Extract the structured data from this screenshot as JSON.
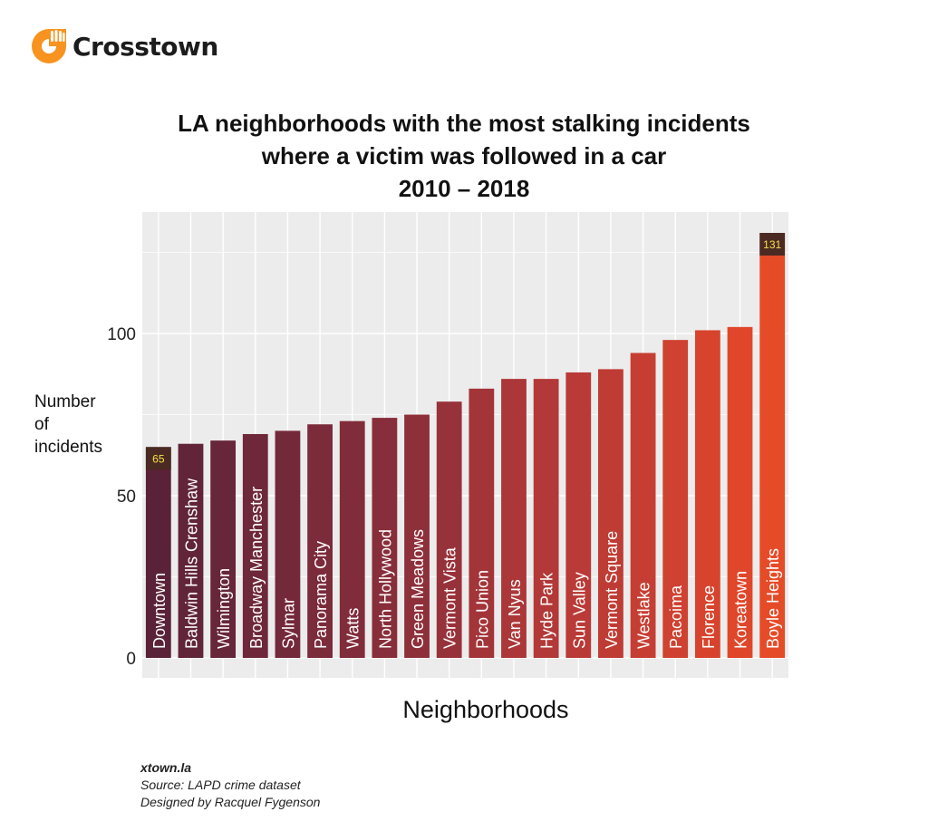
{
  "brand": {
    "name": "Crosstown",
    "logo_icon": "crosstown-hand-logo",
    "accent": "#f7931e"
  },
  "footer": {
    "site": "xtown.la",
    "source": "Source: LAPD crime dataset",
    "credit": "Designed by Racquel Fygenson"
  },
  "chart_data": {
    "type": "bar",
    "title_lines": [
      "LA neighborhoods with the most stalking incidents",
      "where a victim was followed in a car",
      "2010 – 2018"
    ],
    "xlabel": "Neighborhoods",
    "ylabel_lines": [
      "Number",
      "of",
      "incidents"
    ],
    "ylim": [
      0,
      137
    ],
    "yticks": [
      0,
      50,
      100
    ],
    "grid": true,
    "background": "#ececec",
    "categories": [
      "Downtown",
      "Baldwin Hills Crenshaw",
      "Wilmington",
      "Broadway Manchester",
      "Sylmar",
      "Panorama City",
      "Watts",
      "North Hollywood",
      "Green Meadows",
      "Vermont Vista",
      "Pico Union",
      "Van Nyus",
      "Hyde Park",
      "Sun Valley",
      "Vermont Square",
      "Westlake",
      "Pacoima",
      "Florence",
      "Koreatown",
      "Boyle Heights"
    ],
    "values": [
      65,
      66,
      67,
      69,
      70,
      72,
      73,
      74,
      75,
      79,
      83,
      86,
      86,
      88,
      89,
      94,
      98,
      101,
      102,
      131
    ],
    "colors": [
      "#5a2238",
      "#612439",
      "#67263a",
      "#6e283a",
      "#74293a",
      "#7b2b3a",
      "#812c3a",
      "#882e3a",
      "#8e303a",
      "#98323a",
      "#a33539",
      "#ac3738",
      "#b23937",
      "#b93a36",
      "#bf3c34",
      "#c63e33",
      "#cf4130",
      "#d8432d",
      "#df462a",
      "#e64b28"
    ],
    "data_labels": [
      {
        "index": 0,
        "text": "65"
      },
      {
        "index": 19,
        "text": "131"
      }
    ],
    "label_box_color": "#4a2a22",
    "label_text_color": "#f5e04a"
  }
}
